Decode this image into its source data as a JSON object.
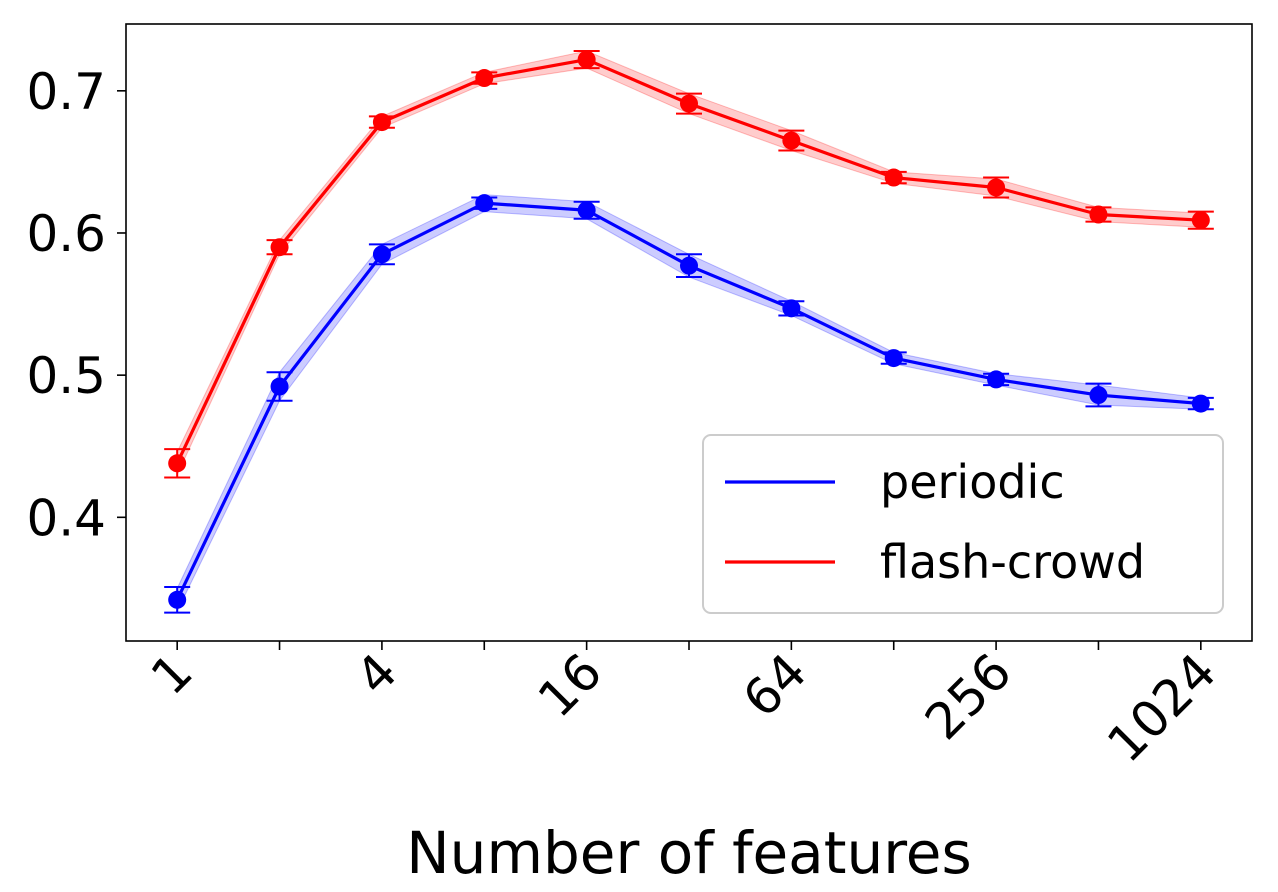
{
  "chart_data": {
    "type": "line",
    "title": "",
    "xlabel": "Number of features",
    "ylabel": "",
    "x_scale": "log2",
    "x": [
      1,
      2,
      4,
      8,
      16,
      32,
      64,
      128,
      256,
      512,
      1024
    ],
    "x_tick_values": [
      1,
      2,
      4,
      8,
      16,
      32,
      64,
      128,
      256,
      512,
      1024
    ],
    "x_tick_labels": [
      "1",
      "",
      "4",
      "",
      "16",
      "",
      "64",
      "",
      "256",
      "",
      "1024"
    ],
    "y_tick_values": [
      0.4,
      0.5,
      0.6,
      0.7
    ],
    "y_tick_labels": [
      "0.4",
      "0.5",
      "0.6",
      "0.7"
    ],
    "ylim": [
      0.313,
      0.747
    ],
    "grid": false,
    "legend_position": "lower-right",
    "series": [
      {
        "name": "periodic",
        "color": "#0000ff",
        "values": [
          0.342,
          0.492,
          0.585,
          0.621,
          0.616,
          0.577,
          0.547,
          0.512,
          0.497,
          0.486,
          0.48
        ],
        "error": [
          0.009,
          0.01,
          0.007,
          0.004,
          0.006,
          0.008,
          0.005,
          0.004,
          0.004,
          0.008,
          0.004
        ],
        "band": [
          0.008,
          0.01,
          0.007,
          0.006,
          0.006,
          0.008,
          0.005,
          0.004,
          0.004,
          0.007,
          0.004
        ]
      },
      {
        "name": "flash-crowd",
        "color": "#ff0000",
        "values": [
          0.438,
          0.59,
          0.678,
          0.709,
          0.722,
          0.691,
          0.665,
          0.639,
          0.632,
          0.613,
          0.609
        ],
        "error": [
          0.01,
          0.005,
          0.004,
          0.004,
          0.006,
          0.007,
          0.007,
          0.004,
          0.007,
          0.005,
          0.006
        ],
        "band": [
          0.008,
          0.005,
          0.004,
          0.004,
          0.006,
          0.007,
          0.007,
          0.004,
          0.006,
          0.005,
          0.005
        ]
      }
    ]
  }
}
